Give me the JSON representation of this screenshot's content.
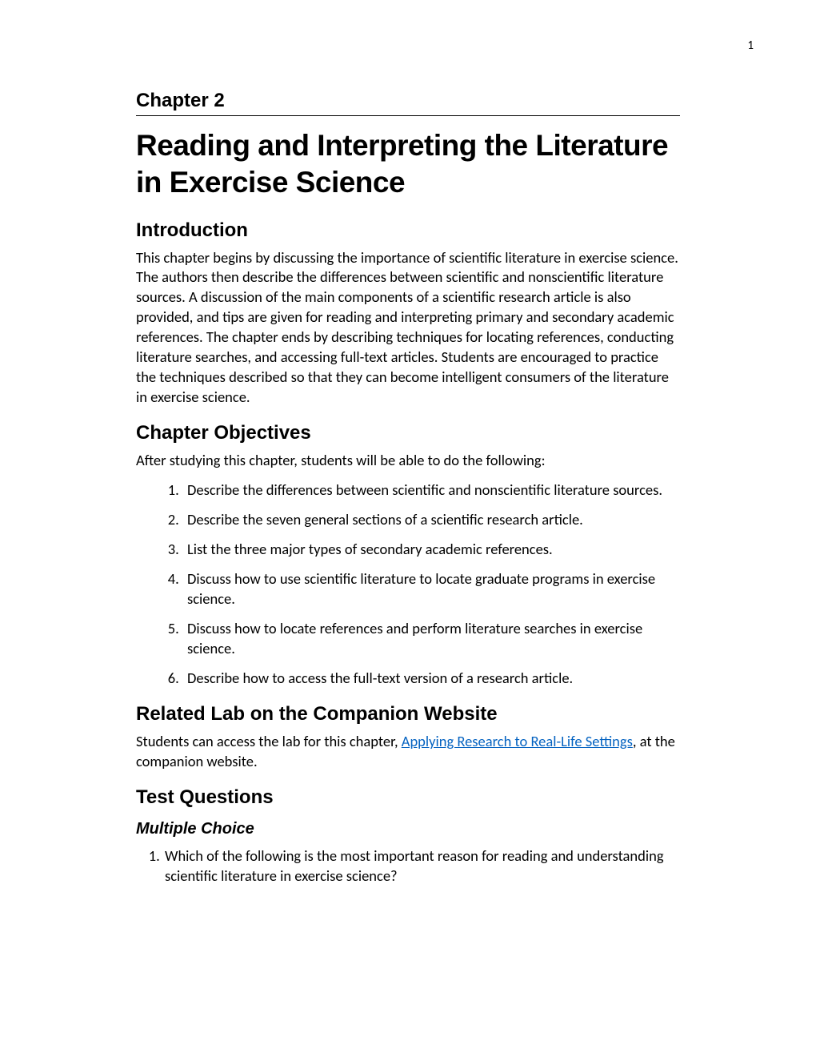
{
  "page_number": "1",
  "chapter_label": "Chapter 2",
  "chapter_title": "Reading and Interpreting the Literature in Exercise Science",
  "introduction": {
    "heading": "Introduction",
    "text": "This chapter begins by discussing the importance of scientific literature in exercise science. The authors then describe the differences between scientific and nonscientific literature sources. A discussion of the main components of a scientific research article is also provided, and tips are given for reading and interpreting primary and secondary academic references. The chapter ends by describing techniques for locating references, conducting literature searches, and accessing full-text articles. Students are encouraged to practice the techniques described so that they can become intelligent consumers of the literature in exercise science."
  },
  "objectives": {
    "heading": "Chapter Objectives",
    "intro": "After studying this chapter, students will be able to do the following:",
    "items": [
      "Describe the differences between scientific and nonscientific literature sources.",
      "Describe the seven general sections of a scientific research article.",
      "List the three major types of secondary academic references.",
      "Discuss how to use scientific literature to locate graduate programs in exercise science.",
      "Discuss how to locate references and perform literature searches in exercise science.",
      "Describe how to access the full-text version of a research article."
    ]
  },
  "related_lab": {
    "heading": "Related Lab on the Companion Website",
    "text_before": "Students can access the lab for this chapter, ",
    "link_text": "Applying Research to Real-Life Settings",
    "text_after": ", at the companion website."
  },
  "test_questions": {
    "heading": "Test Questions",
    "sub_heading": "Multiple Choice",
    "q1": "Which of the following is the most important reason for reading and understanding scientific literature in exercise science?"
  },
  "colors": {
    "link": "#0563c1",
    "text": "#000000",
    "background": "#ffffff"
  },
  "typography": {
    "body_font": "Calibri",
    "heading_font": "Arial",
    "title_font": "Arial Black",
    "chapter_label_size": 24,
    "title_size": 37,
    "section_heading_size": 24,
    "sub_heading_size": 20,
    "body_size": 18.5
  }
}
